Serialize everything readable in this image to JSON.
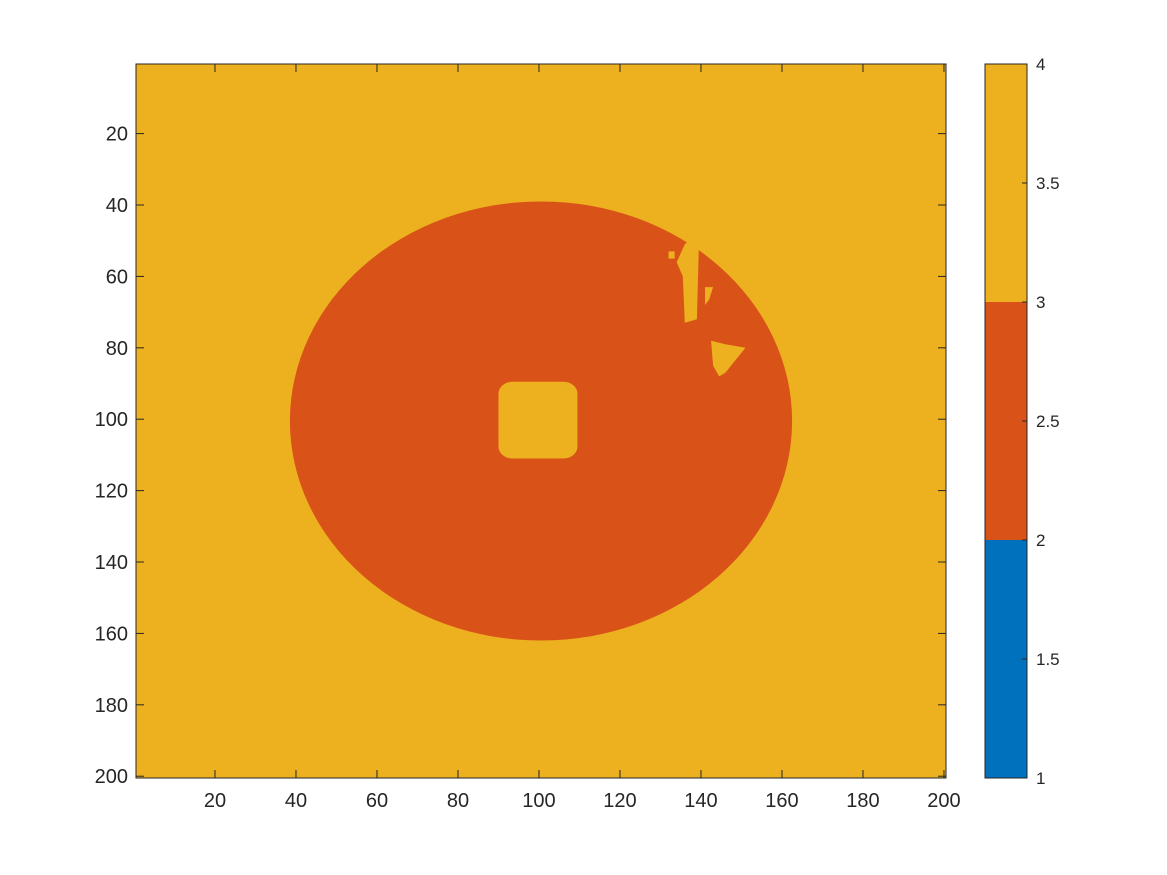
{
  "chart_data": {
    "type": "heatmap",
    "title": "",
    "xlabel": "",
    "ylabel": "",
    "xlim": [
      0.5,
      200.5
    ],
    "ylim": [
      0.5,
      200.5
    ],
    "y_reversed": true,
    "x_ticks": [
      "20",
      "40",
      "60",
      "80",
      "100",
      "120",
      "140",
      "160",
      "180",
      "200"
    ],
    "y_ticks": [
      "20",
      "40",
      "60",
      "80",
      "100",
      "120",
      "140",
      "160",
      "180",
      "200"
    ],
    "colors": {
      "value_2": "#D95319",
      "value_3": "#EDB120",
      "value_1": "#0072BD"
    },
    "background_value": 3,
    "regions": [
      {
        "shape": "ellipse",
        "value": 2,
        "center": [
          100.5,
          100.5
        ],
        "semi_axes": [
          62,
          61.5
        ]
      },
      {
        "shape": "rounded_rect",
        "value": 3,
        "x_range": [
          90,
          109.5
        ],
        "y_range": [
          89.5,
          111
        ]
      },
      {
        "shape": "polygon",
        "value": 3,
        "points": [
          [
            136,
            51
          ],
          [
            138,
            49
          ],
          [
            139.5,
            51
          ],
          [
            139,
            72
          ],
          [
            136,
            73
          ],
          [
            135.5,
            60
          ],
          [
            134,
            56
          ]
        ]
      },
      {
        "shape": "rect",
        "value": 3,
        "x_range": [
          132,
          133.5
        ],
        "y_range": [
          53,
          55
        ]
      },
      {
        "shape": "polygon",
        "value": 3,
        "points": [
          [
            141,
            63
          ],
          [
            143,
            63
          ],
          [
            142,
            66.5
          ],
          [
            141,
            68
          ]
        ]
      },
      {
        "shape": "polygon",
        "value": 3,
        "points": [
          [
            142.5,
            78
          ],
          [
            146,
            79
          ],
          [
            151,
            80
          ],
          [
            146,
            87
          ],
          [
            144.5,
            88
          ],
          [
            143,
            85
          ]
        ]
      }
    ],
    "colorbar": {
      "ticks": [
        "1",
        "1.5",
        "2",
        "2.5",
        "3",
        "3.5",
        "4"
      ],
      "range": [
        1,
        4
      ],
      "segments": [
        {
          "from": 1,
          "to": 2,
          "color": "#0072BD"
        },
        {
          "from": 2,
          "to": 3,
          "color": "#D95319"
        },
        {
          "from": 3,
          "to": 4,
          "color": "#EDB120"
        }
      ]
    }
  }
}
